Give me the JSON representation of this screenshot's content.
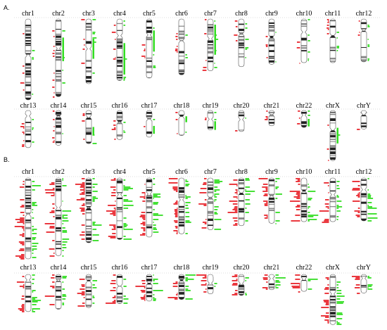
{
  "colors": {
    "loss": "#e8242b",
    "gain": "#33dd22",
    "band_dark": "#222222",
    "band_mid": "#8a8a8a",
    "outline": "#555555"
  },
  "panels": [
    {
      "label": "A.",
      "rows": [
        [
          {
            "name": "chr1",
            "len": 1.0,
            "cen": 0.45
          },
          {
            "name": "chr2",
            "len": 0.96,
            "cen": 0.38
          },
          {
            "name": "chr3",
            "len": 0.8,
            "cen": 0.46
          },
          {
            "name": "chr4",
            "len": 0.76,
            "cen": 0.27
          },
          {
            "name": "chr5",
            "len": 0.73,
            "cen": 0.27
          },
          {
            "name": "chr6",
            "len": 0.69,
            "cen": 0.39
          },
          {
            "name": "chr7",
            "len": 0.64,
            "cen": 0.38
          },
          {
            "name": "chr8",
            "len": 0.59,
            "cen": 0.31
          },
          {
            "name": "chr9",
            "len": 0.56,
            "cen": 0.4
          },
          {
            "name": "chr10",
            "len": 0.54,
            "cen": 0.3
          },
          {
            "name": "chr11",
            "len": 0.54,
            "cen": 0.38
          },
          {
            "name": "chr12",
            "len": 0.53,
            "cen": 0.27
          }
        ],
        [
          {
            "name": "chr13",
            "len": 0.46,
            "cen": 0.15
          },
          {
            "name": "chr14",
            "len": 0.43,
            "cen": 0.17
          },
          {
            "name": "chr15",
            "len": 0.41,
            "cen": 0.2
          },
          {
            "name": "chr16",
            "len": 0.36,
            "cen": 0.4
          },
          {
            "name": "chr17",
            "len": 0.33,
            "cen": 0.32
          },
          {
            "name": "chr18",
            "len": 0.31,
            "cen": 0.24
          },
          {
            "name": "chr19",
            "len": 0.24,
            "cen": 0.45
          },
          {
            "name": "chr20",
            "len": 0.26,
            "cen": 0.43
          },
          {
            "name": "chr21",
            "len": 0.19,
            "cen": 0.27
          },
          {
            "name": "chr22",
            "len": 0.21,
            "cen": 0.28
          },
          {
            "name": "chrX",
            "len": 0.62,
            "cen": 0.39
          },
          {
            "name": "chrY",
            "len": 0.23,
            "cen": 0.21
          }
        ]
      ]
    },
    {
      "label": "B.",
      "rows": [
        [
          {
            "name": "chr1",
            "len": 1.0,
            "cen": 0.45
          },
          {
            "name": "chr2",
            "len": 0.96,
            "cen": 0.38
          },
          {
            "name": "chr3",
            "len": 0.8,
            "cen": 0.46
          },
          {
            "name": "chr4",
            "len": 0.76,
            "cen": 0.27
          },
          {
            "name": "chr5",
            "len": 0.73,
            "cen": 0.27
          },
          {
            "name": "chr6",
            "len": 0.69,
            "cen": 0.39
          },
          {
            "name": "chr7",
            "len": 0.64,
            "cen": 0.38
          },
          {
            "name": "chr8",
            "len": 0.59,
            "cen": 0.31
          },
          {
            "name": "chr9",
            "len": 0.56,
            "cen": 0.4
          },
          {
            "name": "chr10",
            "len": 0.54,
            "cen": 0.3
          },
          {
            "name": "chr11",
            "len": 0.54,
            "cen": 0.38
          },
          {
            "name": "chr12",
            "len": 0.53,
            "cen": 0.27
          }
        ],
        [
          {
            "name": "chr13",
            "len": 0.46,
            "cen": 0.15
          },
          {
            "name": "chr14",
            "len": 0.43,
            "cen": 0.17
          },
          {
            "name": "chr15",
            "len": 0.41,
            "cen": 0.2
          },
          {
            "name": "chr16",
            "len": 0.36,
            "cen": 0.4
          },
          {
            "name": "chr17",
            "len": 0.33,
            "cen": 0.32
          },
          {
            "name": "chr18",
            "len": 0.31,
            "cen": 0.24
          },
          {
            "name": "chr19",
            "len": 0.24,
            "cen": 0.45
          },
          {
            "name": "chr20",
            "len": 0.26,
            "cen": 0.43
          },
          {
            "name": "chr21",
            "len": 0.19,
            "cen": 0.27
          },
          {
            "name": "chr22",
            "len": 0.21,
            "cen": 0.28
          },
          {
            "name": "chrX",
            "len": 0.62,
            "cen": 0.39
          },
          {
            "name": "chrY",
            "len": 0.23,
            "cen": 0.21
          }
        ]
      ]
    }
  ]
}
